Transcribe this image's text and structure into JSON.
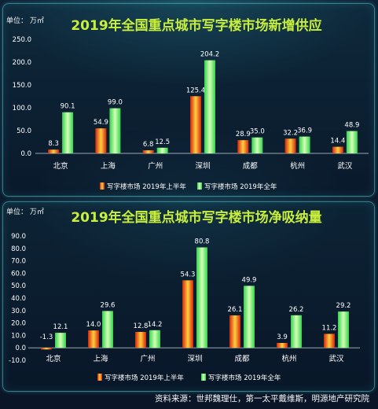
{
  "colors": {
    "title": "#c8ef3c",
    "axis": "#9aa7b4"
  },
  "chart_data": [
    {
      "type": "bar",
      "title": "2019年全国重点城市写字楼市场新增供应",
      "unit_label": "单位： 万㎡",
      "categories": [
        "北京",
        "上海",
        "广州",
        "深圳",
        "成都",
        "杭州",
        "武汉"
      ],
      "series": [
        {
          "name": "写字楼市场 2019年上半年",
          "color_edge": "#d4260e",
          "color_core": "#ffcf3f",
          "values": [
            8.3,
            54.9,
            6.8,
            125.4,
            28.9,
            32.2,
            14.4
          ],
          "value_labels": [
            "8.3",
            "54.9",
            "6.8",
            "125.4",
            "28.9",
            "32.2",
            "14.4"
          ]
        },
        {
          "name": "写字楼市场 2019年全年",
          "color_edge": "#33d34f",
          "color_core": "#d4ffb4",
          "values": [
            90.1,
            99.0,
            12.5,
            204.2,
            35.0,
            36.9,
            48.9
          ],
          "value_labels": [
            "90.1",
            "99.0",
            "12.5",
            "204.2",
            "35.0",
            "36.9",
            "48.9"
          ]
        }
      ],
      "yticks": [
        "0.0",
        "50.0",
        "100.0",
        "150.0",
        "200.0",
        "250.0"
      ],
      "ylim": [
        0,
        250
      ],
      "grid": false,
      "legend": "bottom"
    },
    {
      "type": "bar",
      "title": "2019年全国重点城市写字楼市场净吸纳量",
      "unit_label": "单位： 万㎡",
      "categories": [
        "北京",
        "上海",
        "广州",
        "深圳",
        "成都",
        "杭州",
        "武汉"
      ],
      "series": [
        {
          "name": "写字楼市场 2019年上半年",
          "color_edge": "#d4260e",
          "color_core": "#ffcf3f",
          "values": [
            -1.3,
            14.0,
            12.8,
            54.3,
            26.1,
            3.9,
            11.2
          ],
          "value_labels": [
            "-1.3",
            "14.0",
            "12.8",
            "54.3",
            "26.1",
            "3.9",
            "11.2"
          ]
        },
        {
          "name": "写字楼市场 2019年全年",
          "color_edge": "#33d34f",
          "color_core": "#d4ffb4",
          "values": [
            12.1,
            29.6,
            14.2,
            80.8,
            49.9,
            26.2,
            29.2
          ],
          "value_labels": [
            "12.1",
            "29.6",
            "14.2",
            "80.8",
            "49.9",
            "26.2",
            "29.2"
          ]
        }
      ],
      "yticks": [
        "-10.0",
        "0.0",
        "10.0",
        "20.0",
        "30.0",
        "40.0",
        "50.0",
        "60.0",
        "70.0",
        "80.0",
        "90.0"
      ],
      "ylim": [
        -10,
        90
      ],
      "grid": false,
      "legend": "bottom"
    }
  ],
  "footer": {
    "source": "资料来源：世邦魏理仕，第一太平戴维斯，明源地产研究院"
  }
}
